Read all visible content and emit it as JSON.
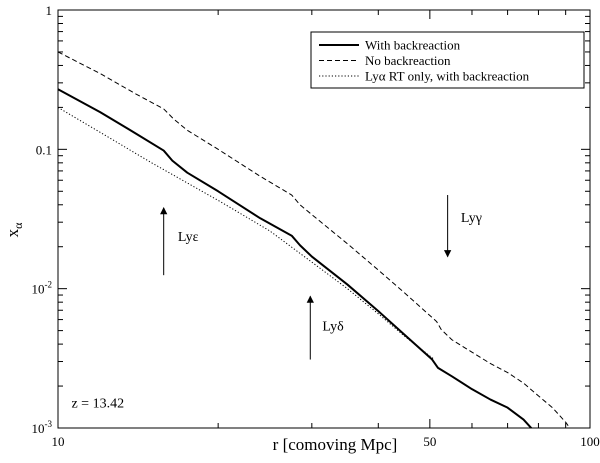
{
  "chart_data": {
    "type": "line",
    "xlabel": "r [comoving Mpc]",
    "ylabel": "x",
    "ylabel_sub": "α",
    "xscale": "log",
    "yscale": "log",
    "xlim": [
      10,
      100
    ],
    "ylim": [
      0.001,
      1
    ],
    "x_tick_labels": [
      {
        "value": 10,
        "label": "10"
      },
      {
        "value": 50,
        "label": "50"
      },
      {
        "value": 100,
        "label": "100"
      }
    ],
    "y_tick_labels": [
      {
        "value": 1,
        "base": "1",
        "exp": ""
      },
      {
        "value": 0.1,
        "base": "0.1",
        "exp": ""
      },
      {
        "value": 0.01,
        "base": "10",
        "exp": "-2"
      },
      {
        "value": 0.001,
        "base": "10",
        "exp": "-3"
      }
    ],
    "grid": false,
    "legend_position": "top-right",
    "series": [
      {
        "name": "With backreaction",
        "style": "solid",
        "x": [
          10,
          12,
          14,
          15.8,
          16.4,
          17.5,
          20,
          24,
          27.5,
          28.5,
          30,
          35,
          40,
          45,
          50.5,
          51.8,
          55,
          60,
          65,
          70,
          75,
          79.5
        ],
        "y": [
          0.27,
          0.185,
          0.13,
          0.098,
          0.083,
          0.068,
          0.05,
          0.032,
          0.024,
          0.0205,
          0.017,
          0.0107,
          0.0069,
          0.0046,
          0.0031,
          0.0027,
          0.00235,
          0.0019,
          0.0016,
          0.0014,
          0.00115,
          0.0009
        ]
      },
      {
        "name": "No backreaction",
        "style": "dashed",
        "x": [
          10,
          12,
          14,
          15.8,
          16.5,
          17.5,
          20,
          24,
          27.5,
          28.5,
          30,
          35,
          40,
          45,
          51.5,
          52.5,
          55,
          60,
          65,
          70,
          75,
          80,
          85,
          90,
          93.5
        ],
        "y": [
          0.5,
          0.35,
          0.25,
          0.195,
          0.165,
          0.137,
          0.1,
          0.064,
          0.047,
          0.04,
          0.034,
          0.021,
          0.0136,
          0.0092,
          0.0058,
          0.0051,
          0.0043,
          0.0035,
          0.0029,
          0.0025,
          0.0021,
          0.0017,
          0.0014,
          0.0011,
          0.0009
        ]
      },
      {
        "name": "Lyα RT only, with backreaction",
        "style": "dotted",
        "x": [
          10,
          15,
          20,
          25,
          30,
          35,
          40,
          45,
          51
        ],
        "y": [
          0.2,
          0.08,
          0.043,
          0.026,
          0.0155,
          0.01,
          0.0066,
          0.0045,
          0.0031
        ]
      }
    ],
    "annotations": [
      {
        "text": "Lyε",
        "x": 15.8,
        "y_start": 0.0125,
        "y_end": 0.038,
        "direction": "up",
        "label_x": 16.8,
        "label_y": 0.022
      },
      {
        "text": "Lyδ",
        "x": 29.8,
        "y_start": 0.0031,
        "y_end": 0.0088,
        "direction": "up",
        "label_x": 31.4,
        "label_y": 0.005
      },
      {
        "text": "Lyγ",
        "x": 54,
        "y_start": 0.047,
        "y_end": 0.017,
        "direction": "down",
        "label_x": 57.2,
        "label_y": 0.03
      },
      {
        "text": "z = 13.42",
        "x": 10.6,
        "y": 0.0014
      }
    ]
  }
}
